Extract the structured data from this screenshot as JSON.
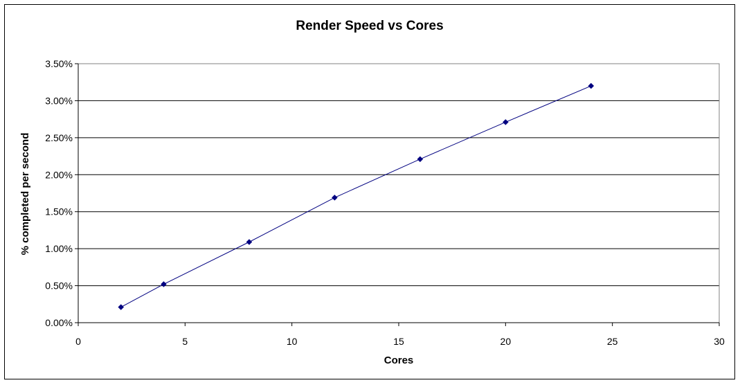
{
  "chart_data": {
    "type": "scatter",
    "title": "Render Speed vs Cores",
    "xlabel": "Cores",
    "ylabel": "% completed per second",
    "xlim": [
      0,
      30
    ],
    "ylim": [
      0,
      0.035
    ],
    "x_ticks": [
      0,
      5,
      10,
      15,
      20,
      25,
      30
    ],
    "x_tick_labels": [
      "0",
      "5",
      "10",
      "15",
      "20",
      "25",
      "30"
    ],
    "y_ticks": [
      0,
      0.005,
      0.01,
      0.015,
      0.02,
      0.025,
      0.03,
      0.035
    ],
    "y_tick_labels": [
      "0.00%",
      "0.50%",
      "1.00%",
      "1.50%",
      "2.00%",
      "2.50%",
      "3.00%",
      "3.50%"
    ],
    "grid": "horizontal",
    "legend": "none",
    "marker": "diamond",
    "connected": true,
    "series": [
      {
        "color": "#000080",
        "x": [
          2,
          4,
          8,
          12,
          16,
          20,
          24
        ],
        "y": [
          0.0021,
          0.0052,
          0.0109,
          0.0169,
          0.0221,
          0.0271,
          0.032
        ]
      }
    ]
  }
}
